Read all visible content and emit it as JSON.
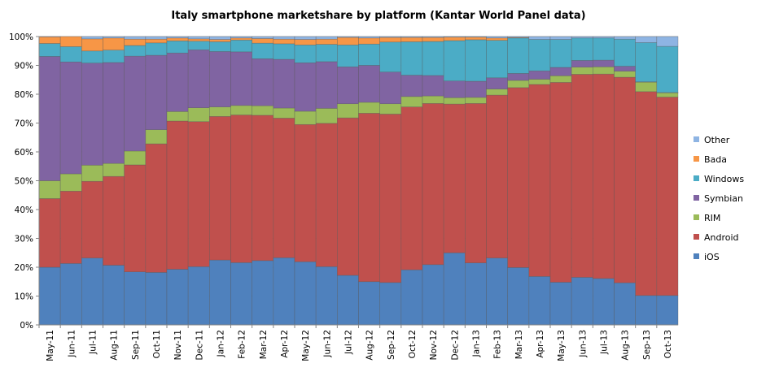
{
  "chart_data": {
    "type": "stacked-bar",
    "stacked": true,
    "percent": true,
    "title": "Italy smartphone marketshare by platform (Kantar World Panel data)",
    "xlabel": "",
    "ylabel": "",
    "ylim": [
      0,
      100
    ],
    "yticks": [
      "0%",
      "10%",
      "20%",
      "30%",
      "40%",
      "50%",
      "60%",
      "70%",
      "80%",
      "90%",
      "100%"
    ],
    "legend_position": "right",
    "grid": true,
    "categories": [
      "May-11",
      "Jun-11",
      "Jul-11",
      "Aug-11",
      "Sep-11",
      "Oct-11",
      "Nov-11",
      "Dec-11",
      "Jan-12",
      "Feb-12",
      "Mar-12",
      "Apr-12",
      "May-12",
      "Jun-12",
      "Jul-12",
      "Aug-12",
      "Sep-12",
      "Oct-12",
      "Nov-12",
      "Dec-12",
      "Jan-13",
      "Feb-13",
      "Mar-13",
      "Apr-13",
      "May-13",
      "Jun-13",
      "Jul-13",
      "Aug-13",
      "Sep-13",
      "Oct-13"
    ],
    "series": [
      {
        "name": "iOS",
        "color": "#4F81BD",
        "values": [
          20.0,
          21.3,
          23.2,
          20.7,
          18.4,
          18.2,
          19.3,
          20.2,
          22.5,
          21.6,
          22.3,
          23.3,
          21.9,
          20.2,
          17.2,
          15.0,
          14.7,
          19.1,
          20.9,
          25.0,
          21.5,
          23.2,
          19.9,
          16.8,
          14.8,
          16.5,
          16.1,
          14.6,
          10.2,
          10.2
        ]
      },
      {
        "name": "Android",
        "color": "#C0504D",
        "values": [
          23.8,
          25.1,
          26.6,
          30.8,
          37.1,
          44.6,
          51.4,
          50.3,
          49.8,
          51.2,
          50.4,
          48.4,
          47.6,
          49.7,
          54.6,
          58.4,
          58.4,
          56.5,
          55.9,
          51.6,
          55.3,
          56.5,
          62.4,
          66.6,
          69.3,
          70.4,
          70.9,
          71.3,
          70.7,
          68.8
        ]
      },
      {
        "name": "RIM",
        "color": "#9BBB59",
        "values": [
          6.2,
          6.0,
          5.6,
          4.5,
          4.8,
          4.9,
          3.3,
          4.8,
          3.3,
          3.3,
          3.3,
          3.5,
          4.6,
          5.2,
          4.9,
          3.8,
          3.6,
          3.6,
          2.6,
          2.2,
          2.1,
          2.1,
          2.5,
          1.8,
          2.3,
          2.5,
          2.5,
          2.1,
          3.3,
          1.5
        ]
      },
      {
        "name": "Symbian",
        "color": "#8064A2",
        "values": [
          43.1,
          38.8,
          35.4,
          35.0,
          32.9,
          25.8,
          20.3,
          20.1,
          19.2,
          18.6,
          16.3,
          16.9,
          16.8,
          16.2,
          12.8,
          12.8,
          11.0,
          7.4,
          7.1,
          5.8,
          5.6,
          3.9,
          2.4,
          2.9,
          2.9,
          2.3,
          2.3,
          1.7,
          0.1,
          0.1
        ]
      },
      {
        "name": "Windows",
        "color": "#4BACC6",
        "values": [
          4.5,
          5.3,
          4.2,
          4.3,
          3.7,
          4.3,
          4.2,
          3.0,
          3.4,
          4.1,
          5.4,
          5.4,
          6.2,
          6.0,
          7.6,
          7.4,
          10.4,
          11.6,
          11.8,
          14.0,
          14.4,
          13.0,
          12.3,
          10.9,
          9.7,
          7.8,
          7.7,
          9.4,
          13.6,
          16.0
        ]
      },
      {
        "name": "Bada",
        "color": "#F79646",
        "values": [
          2.3,
          3.5,
          4.2,
          4.2,
          2.2,
          1.3,
          1.0,
          0.8,
          0.8,
          0.7,
          1.6,
          1.6,
          1.9,
          1.8,
          2.6,
          2.1,
          1.6,
          1.5,
          1.4,
          1.2,
          0.9,
          0.8,
          0.2,
          0.0,
          0.0,
          0.0,
          0.0,
          0.0,
          0.0,
          0.0
        ]
      },
      {
        "name": "Other",
        "color": "#8EB4E3",
        "values": [
          0.1,
          0.0,
          0.8,
          0.5,
          0.9,
          0.9,
          0.5,
          0.8,
          1.0,
          0.5,
          0.7,
          0.9,
          1.0,
          0.9,
          0.3,
          0.5,
          0.3,
          0.3,
          0.3,
          0.2,
          0.2,
          0.5,
          0.3,
          1.0,
          1.0,
          0.5,
          0.5,
          0.9,
          2.1,
          3.4
        ]
      }
    ]
  }
}
